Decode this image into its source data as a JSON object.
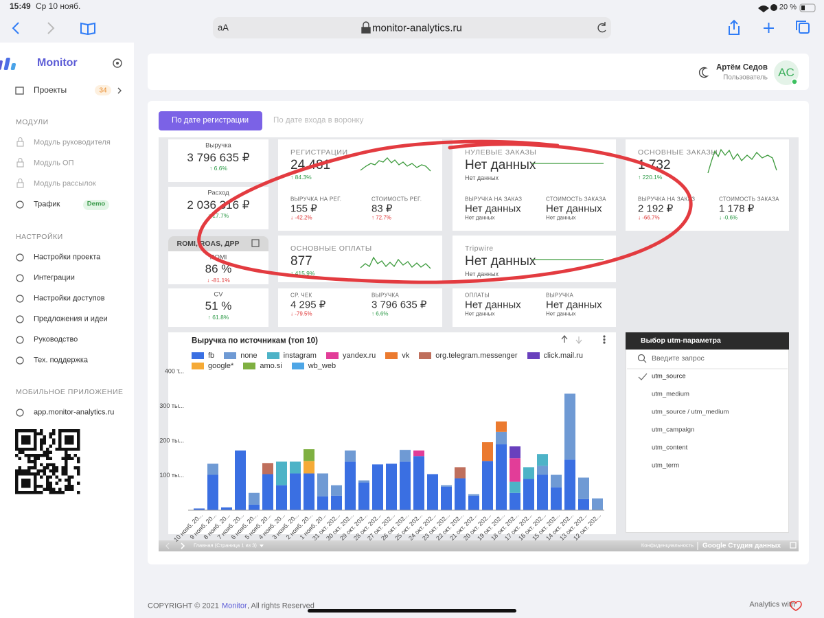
{
  "status_bar": {
    "time": "15:49",
    "date": "Ср 10 нояб.",
    "battery": "20 %"
  },
  "browser": {
    "text_size": "aA",
    "url": "monitor-analytics.ru"
  },
  "sidebar": {
    "brand": "Monitor",
    "projects": {
      "label": "Проекты",
      "count": 34
    },
    "sections": [
      {
        "title": "МОДУЛИ",
        "items": [
          {
            "label": "Модуль руководителя"
          },
          {
            "label": "Модуль ОП"
          },
          {
            "label": "Модуль рассылок"
          },
          {
            "label": "Трафик",
            "badge": "Demo"
          }
        ]
      },
      {
        "title": "НАСТРОЙКИ",
        "items": [
          {
            "label": "Настройки проекта"
          },
          {
            "label": "Интеграции"
          },
          {
            "label": "Настройки доступов"
          },
          {
            "label": "Предложения и идеи"
          },
          {
            "label": "Руководство"
          },
          {
            "label": "Тех. поддержка"
          }
        ]
      },
      {
        "title": "МОБИЛЬНОЕ ПРИЛОЖЕНИЕ",
        "items": [
          {
            "label": "app.monitor-analytics.ru"
          }
        ]
      }
    ]
  },
  "header": {
    "user_name": "Артём Седов",
    "role": "Пользователь",
    "initials": "AC"
  },
  "tabs": [
    "По дате регистрации",
    "По дате входа в воронку"
  ],
  "left_cards": [
    {
      "label": "Выручка",
      "value": "3 796 635 ₽",
      "change": "6.6%",
      "arrow": "up",
      "tone": "good"
    },
    {
      "label": "Расход",
      "value": "2 036 316 ₽",
      "change": "17.7%",
      "arrow": "up",
      "tone": "good"
    }
  ],
  "romi_group": {
    "title": "ROMI, ROAS, ДРР",
    "cards": [
      {
        "label": "ROMI",
        "value": "86 %",
        "change": "-81.1%",
        "arrow": "down",
        "tone": "bad"
      },
      {
        "label": "CV",
        "value": "51 %",
        "change": "61.8%",
        "arrow": "up",
        "tone": "good"
      }
    ]
  },
  "kpi_cards": [
    {
      "title": "РЕГИСТРАЦИИ",
      "value": "24 481",
      "change": "84.3%",
      "arrow": "up",
      "tone": "good",
      "sub": [
        {
          "label": "ВЫРУЧКА НА РЕГ.",
          "value": "155 ₽",
          "change": "-42.2%",
          "arrow": "down",
          "tone": "bad"
        },
        {
          "label": "СТОИМОСТЬ РЕГ.",
          "value": "83 ₽",
          "change": "72.7%",
          "arrow": "up",
          "tone": "bad"
        }
      ]
    },
    {
      "title": "НУЛЕВЫЕ ЗАКАЗЫ",
      "value": "Нет данных",
      "note": "Нет данных",
      "sub": [
        {
          "label": "ВЫРУЧКА НА ЗАКАЗ",
          "value": "Нет данных",
          "note": "Нет данных"
        },
        {
          "label": "СТОИМОСТЬ ЗАКАЗА",
          "value": "Нет данных",
          "note": "Нет данных"
        }
      ]
    },
    {
      "title": "ОСНОВНЫЕ ЗАКАЗЫ",
      "value": "1 732",
      "change": "220.1%",
      "arrow": "up",
      "tone": "good",
      "sub": [
        {
          "label": "ВЫРУЧКА НА ЗАКАЗ",
          "value": "2 192 ₽",
          "change": "-66.7%",
          "arrow": "down",
          "tone": "bad"
        },
        {
          "label": "СТОИМОСТЬ ЗАКАЗА",
          "value": "1 178 ₽",
          "change": "-0.6%",
          "arrow": "down",
          "tone": "good"
        }
      ]
    },
    {
      "title": "ОСНОВНЫЕ ОПЛАТЫ",
      "value": "877",
      "change": "415.9%",
      "arrow": "up",
      "tone": "good",
      "sub": [
        {
          "label": "СР. ЧЕК",
          "value": "4 295 ₽",
          "change": "-79.5%",
          "arrow": "down",
          "tone": "bad"
        },
        {
          "label": "ВЫРУЧКА",
          "value": "3 796 635 ₽",
          "change": "6.6%",
          "arrow": "up",
          "tone": "good"
        }
      ]
    },
    {
      "title": "Tripwire",
      "value": "Нет данных",
      "note": "Нет данных",
      "sub": [
        {
          "label": "ОПЛАТЫ",
          "value": "Нет данных",
          "note": "Нет данных"
        },
        {
          "label": "ВЫРУЧКА",
          "value": "Нет данных",
          "note": "Нет данных"
        }
      ]
    }
  ],
  "chart_data": {
    "type": "stacked_bar",
    "title": "Выручка по источникам (топ 10)",
    "categories": [
      "10 нояб. 20...",
      "9 нояб. 20...",
      "8 нояб. 20...",
      "7 нояб. 20...",
      "6 нояб. 20...",
      "5 нояб. 20...",
      "4 нояб. 20...",
      "3 нояб. 20...",
      "2 нояб. 20...",
      "1 нояб. 20...",
      "31 окт. 202...",
      "30 окт. 202...",
      "29 окт. 202...",
      "28 окт. 202...",
      "27 окт. 202...",
      "26 окт. 202...",
      "25 окт. 202...",
      "24 окт. 202...",
      "23 окт. 202...",
      "22 окт. 202...",
      "21 окт. 202...",
      "20 окт. 202...",
      "19 окт. 202...",
      "18 окт. 202...",
      "17 окт. 202...",
      "16 окт. 202...",
      "15 окт. 202...",
      "14 окт. 202...",
      "13 окт. 202...",
      "12 окт. 202..."
    ],
    "series": [
      {
        "name": "fb",
        "color": "#3a6fe2",
        "values": [
          5000,
          102000,
          8000,
          172000,
          16000,
          104000,
          72000,
          106000,
          106000,
          40000,
          42000,
          140000,
          80000,
          132000,
          134000,
          140000,
          156000,
          104000,
          68000,
          92000,
          42000,
          142000,
          190000,
          50000,
          90000,
          102000,
          66000,
          146000,
          32000,
          0
        ]
      },
      {
        "name": "none",
        "color": "#6f9ad4",
        "values": [
          0,
          32000,
          0,
          0,
          34000,
          0,
          0,
          0,
          0,
          66000,
          30000,
          32000,
          6000,
          0,
          0,
          34000,
          0,
          0,
          4000,
          0,
          4000,
          0,
          36000,
          0,
          0,
          26000,
          36000,
          190000,
          62000,
          34000
        ]
      },
      {
        "name": "instagram",
        "color": "#4db3c7",
        "values": [
          0,
          0,
          0,
          0,
          0,
          0,
          68000,
          34000,
          0,
          0,
          0,
          0,
          0,
          0,
          0,
          0,
          0,
          0,
          0,
          0,
          0,
          0,
          0,
          32000,
          34000,
          34000,
          0,
          0,
          0,
          0
        ]
      },
      {
        "name": "yandex.ru",
        "color": "#e23d98",
        "values": [
          0,
          0,
          0,
          0,
          0,
          0,
          0,
          0,
          0,
          0,
          0,
          0,
          0,
          0,
          0,
          0,
          16000,
          0,
          0,
          0,
          0,
          0,
          0,
          68000,
          0,
          0,
          0,
          0,
          0,
          0
        ]
      },
      {
        "name": "vk",
        "color": "#eb7a2f",
        "values": [
          0,
          0,
          0,
          0,
          0,
          0,
          0,
          0,
          0,
          0,
          0,
          0,
          0,
          0,
          0,
          0,
          0,
          0,
          0,
          0,
          0,
          54000,
          30000,
          0,
          0,
          0,
          0,
          0,
          0,
          0
        ]
      },
      {
        "name": "org.telegram.messenger",
        "color": "#bf6f5c",
        "values": [
          0,
          0,
          0,
          0,
          0,
          32000,
          0,
          0,
          0,
          0,
          0,
          0,
          0,
          0,
          0,
          0,
          0,
          0,
          0,
          32000,
          0,
          0,
          0,
          0,
          0,
          0,
          0,
          0,
          0,
          0
        ]
      },
      {
        "name": "click.mail.ru",
        "color": "#6940bd",
        "values": [
          0,
          0,
          0,
          0,
          0,
          0,
          0,
          0,
          0,
          0,
          0,
          0,
          0,
          0,
          0,
          0,
          0,
          0,
          0,
          0,
          0,
          0,
          0,
          34000,
          0,
          0,
          0,
          0,
          0,
          0
        ]
      },
      {
        "name": "google*",
        "color": "#f5aa36",
        "values": [
          0,
          0,
          0,
          0,
          0,
          0,
          0,
          0,
          36000,
          0,
          0,
          0,
          0,
          0,
          0,
          0,
          0,
          0,
          0,
          0,
          0,
          0,
          0,
          0,
          0,
          0,
          0,
          0,
          0,
          0
        ]
      },
      {
        "name": "amo.si",
        "color": "#7fb041",
        "values": [
          0,
          0,
          0,
          0,
          0,
          0,
          0,
          0,
          34000,
          0,
          0,
          0,
          0,
          0,
          0,
          0,
          0,
          0,
          0,
          0,
          0,
          0,
          0,
          0,
          0,
          0,
          0,
          0,
          0,
          0
        ]
      },
      {
        "name": "wb_web",
        "color": "#4ea6e6",
        "values": [
          0,
          0,
          0,
          0,
          0,
          0,
          0,
          0,
          0,
          0,
          0,
          0,
          0,
          0,
          0,
          0,
          0,
          0,
          0,
          0,
          0,
          0,
          0,
          0,
          0,
          0,
          0,
          0,
          0,
          0
        ]
      }
    ],
    "ylim": [
      0,
      400000
    ],
    "yticks": [
      {
        "value": 100000,
        "label": "100 ты..."
      },
      {
        "value": 200000,
        "label": "200 ты..."
      },
      {
        "value": 300000,
        "label": "300 ты..."
      },
      {
        "value": 400000,
        "label": "400 т..."
      }
    ],
    "grid": false
  },
  "utm_panel": {
    "title": "Выбор utm-параметра",
    "search_placeholder": "Введите запрос",
    "options": [
      "utm_source",
      "utm_medium",
      "utm_source / utm_medium",
      "utm_campaign",
      "utm_content",
      "utm_term"
    ],
    "selected": 0
  },
  "report_bar": {
    "page": "Главная (Страница 1 из 3)",
    "privacy": "Конфиденциальность",
    "product": "Google Студия данных"
  },
  "footer": {
    "copyright": "COPYRIGHT © 2021",
    "brand": "Monitor",
    "rights": ", All rights Reserved",
    "analytics": "Analytics with"
  }
}
